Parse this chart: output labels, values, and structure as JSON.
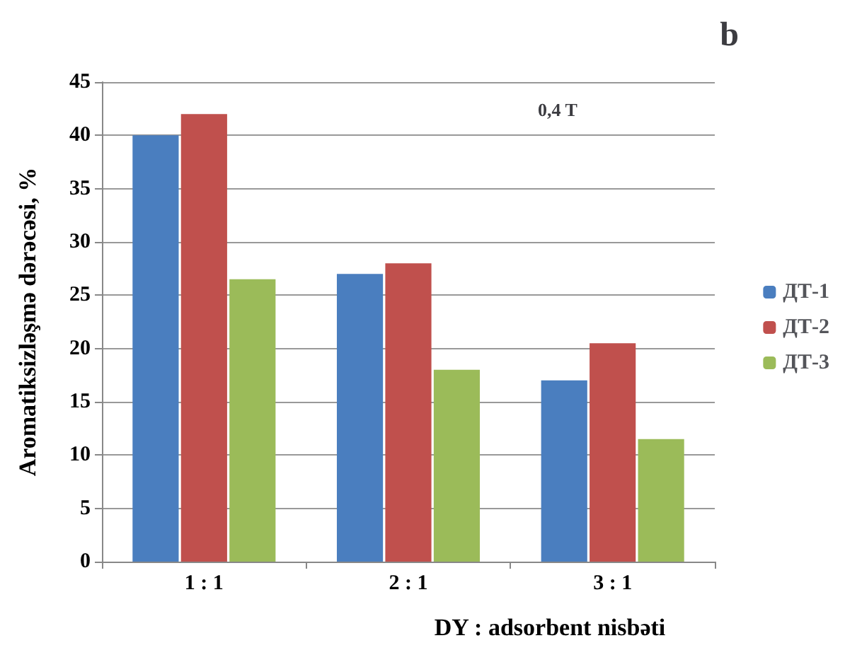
{
  "chart_data": {
    "type": "bar",
    "title": "b",
    "annotations": [
      "0,4 T"
    ],
    "xlabel": "DY : adsorbent nisbəti",
    "ylabel": "Aromatiksizləşmə dərəcəsi, %",
    "categories": [
      "1 : 1",
      "2 : 1",
      "3 : 1"
    ],
    "series": [
      {
        "name": "ДТ-1",
        "color": "#4a7ebf",
        "values": [
          40,
          27,
          17
        ]
      },
      {
        "name": "ДТ-2",
        "color": "#c0504d",
        "values": [
          42,
          28,
          20.5
        ]
      },
      {
        "name": "ДТ-3",
        "color": "#9bbb59",
        "values": [
          26.5,
          18,
          11.5
        ]
      }
    ],
    "ylim": [
      0,
      45
    ],
    "yticks": [
      0,
      5,
      10,
      15,
      20,
      25,
      30,
      35,
      40,
      45
    ],
    "grid": "y",
    "legend": "right"
  }
}
